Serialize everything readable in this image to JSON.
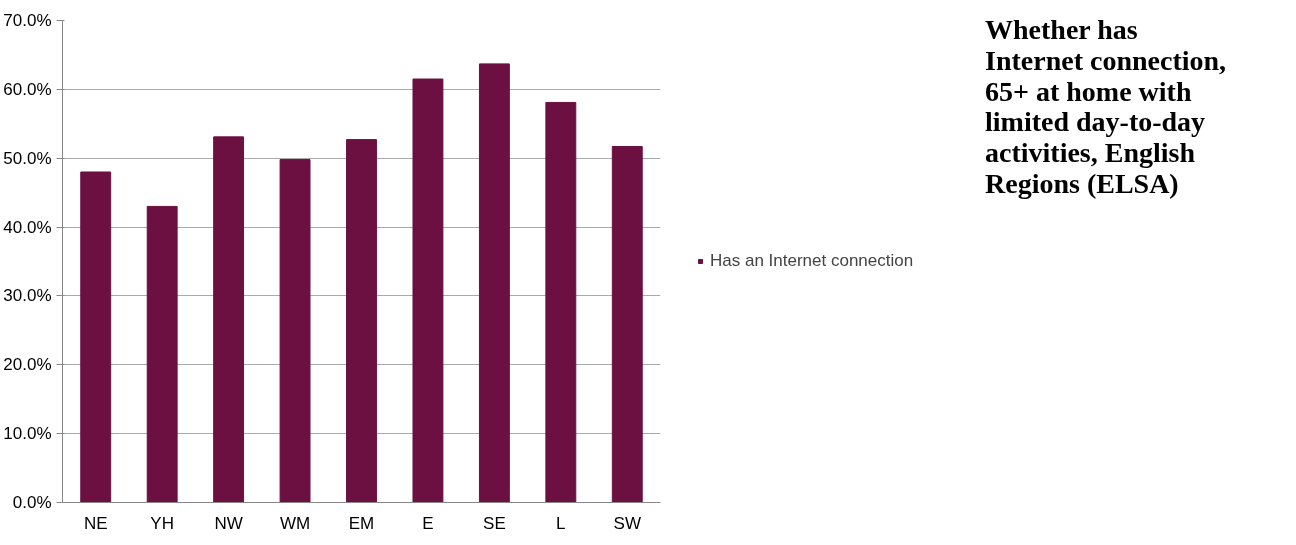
{
  "chart_data": {
    "type": "bar",
    "title": "Whether has Internet connection, 65+ at home with limited day-to-day activities, English Regions (ELSA)",
    "categories": [
      "NE",
      "YH",
      "NW",
      "WM",
      "EM",
      "E",
      "SE",
      "L",
      "SW"
    ],
    "series": [
      {
        "name": "Has an Internet connection",
        "color": "#6b1040",
        "values": [
          48.0,
          43.0,
          53.1,
          49.8,
          52.7,
          61.5,
          63.7,
          58.1,
          51.7
        ]
      }
    ],
    "ylim": [
      0,
      70
    ],
    "yticks": [
      {
        "value": 0,
        "label": "0.0%"
      },
      {
        "value": 10,
        "label": "10.0%"
      },
      {
        "value": 20,
        "label": "20.0%"
      },
      {
        "value": 30,
        "label": "30.0%"
      },
      {
        "value": 40,
        "label": "40.0%"
      },
      {
        "value": 50,
        "label": "50.0%"
      },
      {
        "value": 60,
        "label": "60.0%"
      },
      {
        "value": 70,
        "label": "70.0%"
      }
    ],
    "grid": "y",
    "legend": "right"
  }
}
